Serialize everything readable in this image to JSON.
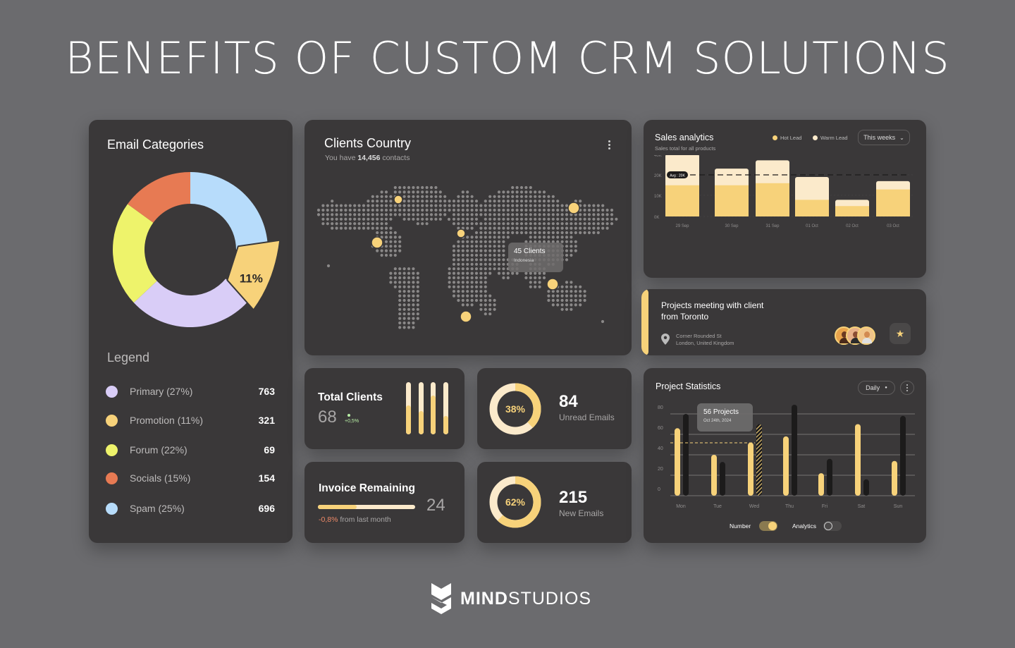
{
  "page_title": "BENEFITS OF CUSTOM CRM SOLUTIONS",
  "colors": {
    "accent": "#f7d27a",
    "accent_light": "#fbeacb",
    "card": "#3a3839",
    "background": "#6b6b6e",
    "negative": "#ef8a68",
    "positive": "#b9f0a6"
  },
  "email_categories": {
    "title": "Email Categories",
    "highlight_label": "11%",
    "legend_title": "Legend",
    "items": [
      {
        "label": "Primary (27%)",
        "value": "763",
        "color": "#d9cdf7"
      },
      {
        "label": "Promotion (11%)",
        "value": "321",
        "color": "#f7d27a"
      },
      {
        "label": "Forum (22%)",
        "value": "69",
        "color": "#eef36b"
      },
      {
        "label": "Socials (15%)",
        "value": "154",
        "color": "#e77a53"
      },
      {
        "label": "Spam (25%)",
        "value": "696",
        "color": "#b7dcfb"
      }
    ]
  },
  "clients_country": {
    "title": "Clients Country",
    "subtitle_prefix": "You have ",
    "subtitle_count": "14,456",
    "subtitle_suffix": " contacts",
    "tooltip_title": "45 Clients",
    "tooltip_sub": "Indonesia",
    "menu_icon": "more-vertical-icon"
  },
  "sales_analytics": {
    "title": "Sales analytics",
    "subtitle": "Sales total for all products",
    "legend": [
      "Hot Lead",
      "Warm Lead"
    ],
    "period": "This weeks",
    "avg_label": "Avg : 20K",
    "y_ticks": [
      "80K",
      "40K",
      "20K",
      "10K",
      "0K"
    ]
  },
  "meeting": {
    "title_line1": "Projects meeting with client",
    "title_line2": "from Toronto",
    "address_line1": "Corner Rounded St",
    "address_line2": "London, United Kingdom",
    "pin_icon": "map-pin-icon",
    "star_icon": "star-icon"
  },
  "total_clients": {
    "title": "Total Clients",
    "value": "68",
    "change": "+0,5%",
    "bars": [
      0.55,
      0.45,
      0.75,
      0.35
    ]
  },
  "unread": {
    "percent_label": "38%",
    "percent": 0.38,
    "value": "84",
    "label": "Unread Emails"
  },
  "new_emails": {
    "percent_label": "62%",
    "percent": 0.62,
    "value": "215",
    "label": "New Emails"
  },
  "invoice": {
    "title": "Invoice Remaining",
    "value": "24",
    "change": "-0,8%",
    "change_suffix": " from last month",
    "progress": 0.4
  },
  "project_stats": {
    "title": "Project Statistics",
    "period": "Daily",
    "tooltip_title": "56 Projects",
    "tooltip_sub": "Oct 24th, 2024",
    "toggles": [
      {
        "label": "Number",
        "on": true
      },
      {
        "label": "Analytics",
        "on": false
      }
    ]
  },
  "chart_data": [
    {
      "type": "bar",
      "title": "Sales analytics",
      "categories": [
        "29 Sep",
        "30 Sep",
        "31 Sep",
        "01 Oct",
        "02 Oct",
        "03 Oct"
      ],
      "series": [
        {
          "name": "Hot Lead",
          "values": [
            15,
            15,
            16,
            8,
            5,
            13
          ]
        },
        {
          "name": "Warm Lead",
          "values": [
            15,
            8,
            11,
            11,
            3,
            4
          ]
        }
      ],
      "y_ticks": [
        "80K",
        "40K",
        "20K",
        "10K",
        "0K"
      ],
      "avg_line": 20,
      "legend": "top-right"
    },
    {
      "type": "bar",
      "title": "Project Statistics",
      "categories": [
        "Mon",
        "Tue",
        "Wed",
        "Thu",
        "Fri",
        "Sat",
        "Sun"
      ],
      "series": [
        {
          "name": "Number",
          "values": [
            66,
            40,
            52,
            58,
            22,
            70,
            34
          ]
        },
        {
          "name": "Analytics",
          "values": [
            80,
            33,
            70,
            89,
            36,
            16,
            78
          ]
        }
      ],
      "ylim": [
        0,
        80
      ],
      "y_ticks": [
        0,
        20,
        40,
        60,
        80
      ],
      "annotation": "56 Projects",
      "grid": true
    },
    {
      "type": "pie",
      "title": "Email Categories",
      "categories": [
        "Primary",
        "Promotion",
        "Forum",
        "Socials",
        "Spam"
      ],
      "values": [
        27,
        11,
        22,
        15,
        25
      ]
    }
  ],
  "brand": {
    "name_bold": "MIND",
    "name_light": "STUDIOS",
    "logo": "mind-studios-logo"
  }
}
